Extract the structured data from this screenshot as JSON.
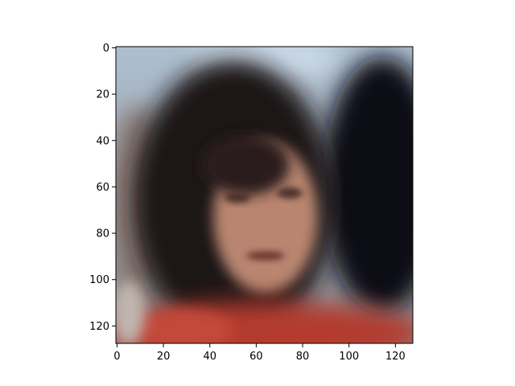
{
  "image": {
    "description_icon": "face-photo-icon",
    "colors": {
      "sky": "#b6c8d8",
      "hair": "#1c1714",
      "skin": "#b88570",
      "shirt": "#b33a2e",
      "dark_bg": "#0b0d12"
    }
  },
  "axes": {
    "xlim": [
      -0.5,
      127.5
    ],
    "ylim_inverted": [
      127.5,
      -0.5
    ],
    "x_ticks": [
      "0",
      "20",
      "40",
      "60",
      "80",
      "100",
      "120"
    ],
    "x_tick_values": [
      0,
      20,
      40,
      60,
      80,
      100,
      120
    ],
    "y_ticks": [
      "0",
      "20",
      "40",
      "60",
      "80",
      "100",
      "120"
    ],
    "y_tick_values": [
      0,
      20,
      40,
      60,
      80,
      100,
      120
    ]
  }
}
